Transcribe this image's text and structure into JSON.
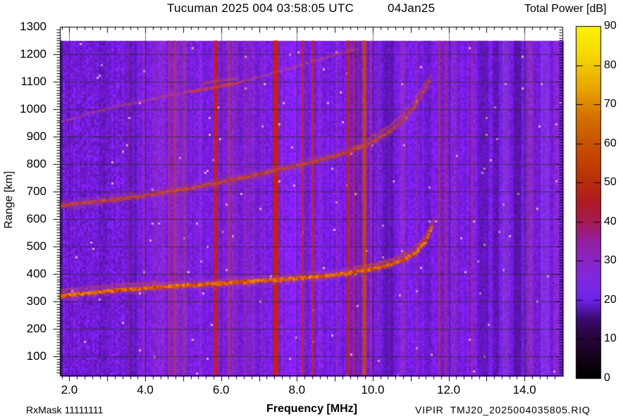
{
  "header": {
    "title": "Tucuman 2025 004 03:58:05 UTC",
    "date": "04Jan25"
  },
  "colorbar": {
    "title": "Total Power [dB]",
    "min": 0,
    "max": 90,
    "tick_step": 10,
    "tick_values": [
      0,
      10,
      20,
      30,
      40,
      50,
      60,
      70,
      80,
      90
    ]
  },
  "axes": {
    "x": {
      "label": "Frequency [MHz]",
      "min": 1.75,
      "max": 15.0,
      "tick_values": [
        2,
        4,
        6,
        8,
        10,
        12,
        14
      ],
      "tick_labels": [
        "2.0",
        "4.0",
        "6.0",
        "8.0",
        "10.0",
        "12.0",
        "14.0"
      ],
      "minor_step": 0.2,
      "mid_step": 1.0
    },
    "y": {
      "label": "Range [km]",
      "min": 30,
      "max": 1300,
      "tick_values": [
        100,
        200,
        300,
        400,
        500,
        600,
        700,
        800,
        900,
        1000,
        1100,
        1200,
        1300
      ],
      "minor_step": 10
    }
  },
  "footer": {
    "rx_mask": "RxMask 11111111",
    "filename": "VIPIR  TMJ20_2025004035805.RIQ"
  },
  "chart_data": {
    "type": "heatmap",
    "title": "Tucuman 2025 004 03:58:05 UTC 04Jan25",
    "xlabel": "Frequency [MHz]",
    "ylabel": "Range [km]",
    "zlabel": "Total Power [dB]",
    "xlim": [
      1.75,
      15.0
    ],
    "ylim": [
      30,
      1300
    ],
    "zlim": [
      0,
      90
    ],
    "grid": true,
    "background_power_dB": 23,
    "background_color": "#7a1ce4",
    "gridline_color": "rgba(25,45,0,0.6)",
    "echo_data_top_km": 1250,
    "foF2_MHz": 11.6,
    "colormap_stops": [
      [
        0.0,
        "#000000"
      ],
      [
        0.07,
        "#17031f"
      ],
      [
        0.13,
        "#2b0747"
      ],
      [
        0.17,
        "#3c0b72"
      ],
      [
        0.22,
        "#6c23e6"
      ],
      [
        0.27,
        "#7d29e2"
      ],
      [
        0.33,
        "#8a26c8"
      ],
      [
        0.39,
        "#951fa0"
      ],
      [
        0.44,
        "#a21c58"
      ],
      [
        0.5,
        "#ae1b22"
      ],
      [
        0.57,
        "#b93208"
      ],
      [
        0.65,
        "#c64d00"
      ],
      [
        0.74,
        "#d57000"
      ],
      [
        0.83,
        "#e9a800"
      ],
      [
        0.92,
        "#f6d800"
      ],
      [
        1.0,
        "#fcf403"
      ]
    ],
    "traces": [
      {
        "name": "F2-first-hop-O-mode",
        "power_dB": 58,
        "alpha": 1.0,
        "passes": 2,
        "glow": "#c05878",
        "palette": [
          "#b83000",
          "#d24a00",
          "#e26200",
          "#ee7e00",
          "#f09200"
        ],
        "points": [
          [
            1.75,
            318
          ],
          [
            2.2,
            326
          ],
          [
            3.0,
            337
          ],
          [
            4.0,
            348
          ],
          [
            5.0,
            357
          ],
          [
            6.0,
            365
          ],
          [
            7.0,
            374
          ],
          [
            8.0,
            384
          ],
          [
            8.8,
            393
          ],
          [
            9.4,
            404
          ],
          [
            10.0,
            418
          ],
          [
            10.5,
            435
          ],
          [
            10.9,
            457
          ],
          [
            11.15,
            480
          ],
          [
            11.35,
            512
          ],
          [
            11.48,
            545
          ],
          [
            11.57,
            577
          ]
        ]
      },
      {
        "name": "F2-first-hop-X-mode",
        "power_dB": 46,
        "alpha": 0.5,
        "passes": 1,
        "palette": [
          "#c04030",
          "#cc5520",
          "#c54a40"
        ],
        "points": [
          [
            9.5,
            420
          ],
          [
            10.0,
            434
          ],
          [
            10.5,
            452
          ],
          [
            10.9,
            476
          ],
          [
            11.2,
            510
          ],
          [
            11.4,
            548
          ],
          [
            11.55,
            585
          ],
          [
            11.63,
            608
          ]
        ]
      },
      {
        "name": "F2-first-hop-X-mode-lowfreq",
        "power_dB": 36,
        "alpha": 0.28,
        "passes": 1,
        "palette": [
          "#bb4466",
          "#c05050"
        ],
        "points": [
          [
            1.75,
            341
          ],
          [
            2.6,
            353
          ],
          [
            3.5,
            364
          ],
          [
            4.3,
            372
          ]
        ]
      },
      {
        "name": "F2-second-hop",
        "power_dB": 46,
        "alpha": 0.8,
        "passes": 1,
        "glow": "#a8487f",
        "palette": [
          "#b03048",
          "#c33d22",
          "#cc4e10",
          "#d25a18"
        ],
        "points": [
          [
            1.75,
            648
          ],
          [
            2.5,
            660
          ],
          [
            3.5,
            676
          ],
          [
            4.5,
            696
          ],
          [
            5.5,
            720
          ],
          [
            6.5,
            748
          ],
          [
            7.5,
            778
          ],
          [
            8.2,
            800
          ],
          [
            8.8,
            822
          ],
          [
            9.4,
            848
          ],
          [
            10.0,
            882
          ],
          [
            10.5,
            925
          ],
          [
            10.9,
            975
          ],
          [
            11.15,
            1022
          ],
          [
            11.3,
            1055
          ],
          [
            11.42,
            1085
          ],
          [
            11.5,
            1100
          ]
        ]
      },
      {
        "name": "F2-second-hop-X-mode",
        "power_dB": 38,
        "alpha": 0.38,
        "passes": 1,
        "palette": [
          "#bb4455",
          "#c25030"
        ],
        "points": [
          [
            9.9,
            895
          ],
          [
            10.4,
            935
          ],
          [
            10.8,
            985
          ],
          [
            11.1,
            1035
          ],
          [
            11.3,
            1080
          ],
          [
            11.45,
            1112
          ],
          [
            11.55,
            1130
          ]
        ]
      },
      {
        "name": "F2-third-hop",
        "power_dB": 33,
        "alpha": 0.28,
        "passes": 1,
        "palette": [
          "#c04f82",
          "#c25560",
          "#bd4a70"
        ],
        "points": [
          [
            1.75,
            952
          ],
          [
            2.5,
            984
          ],
          [
            3.5,
            1018
          ],
          [
            4.5,
            1046
          ],
          [
            5.5,
            1072
          ],
          [
            6.5,
            1098
          ],
          [
            7.5,
            1136
          ],
          [
            8.3,
            1170
          ],
          [
            9.0,
            1198
          ],
          [
            9.6,
            1220
          ]
        ]
      },
      {
        "name": "F2-third-hop-bright-segment",
        "power_dB": 40,
        "alpha": 0.55,
        "passes": 1,
        "palette": [
          "#cc3a30",
          "#c74545"
        ],
        "points": [
          [
            5.15,
            1064
          ],
          [
            5.7,
            1076
          ],
          [
            6.2,
            1088
          ],
          [
            6.5,
            1096
          ]
        ]
      },
      {
        "name": "F2-third-hop-upper-segment",
        "power_dB": 36,
        "alpha": 0.35,
        "passes": 1,
        "palette": [
          "#c54a55",
          "#c05065"
        ],
        "points": [
          [
            5.5,
            1094
          ],
          [
            6.0,
            1104
          ],
          [
            6.45,
            1112
          ]
        ]
      }
    ],
    "rfi_lines": [
      {
        "f": 2.9,
        "w": 0.2,
        "c": "#14003c",
        "a": 0.16
      },
      {
        "f": 3.55,
        "w": 0.05,
        "c": "#c24a78",
        "a": 0.2
      },
      {
        "f": 3.96,
        "w": 0.06,
        "c": "#c24a78",
        "a": 0.3
      },
      {
        "f": 4.35,
        "w": 0.35,
        "c": "#b84a8a",
        "a": 0.18
      },
      {
        "f": 4.63,
        "w": 0.08,
        "c": "#c23a50",
        "a": 0.5
      },
      {
        "f": 4.77,
        "w": 0.09,
        "c": "#c83a30",
        "a": 0.55
      },
      {
        "f": 4.95,
        "w": 0.35,
        "c": "#b84a8a",
        "a": 0.2
      },
      {
        "f": 5.03,
        "w": 0.05,
        "c": "#c23a50",
        "a": 0.45
      },
      {
        "f": 5.28,
        "w": 0.05,
        "c": "#b84a8a",
        "a": 0.2
      },
      {
        "f": 5.46,
        "w": 0.05,
        "c": "#b84a8a",
        "a": 0.25
      },
      {
        "f": 5.86,
        "w": 0.1,
        "c": "#cc2200",
        "a": 0.85
      },
      {
        "f": 6.02,
        "w": 0.05,
        "c": "#c23a50",
        "a": 0.3
      },
      {
        "f": 6.21,
        "w": 0.07,
        "c": "#c83a30",
        "a": 0.45
      },
      {
        "f": 6.3,
        "w": 0.3,
        "c": "#b84a8a",
        "a": 0.2
      },
      {
        "f": 6.63,
        "w": 0.06,
        "c": "#c23a50",
        "a": 0.35
      },
      {
        "f": 6.8,
        "w": 0.2,
        "c": "#b84a8a",
        "a": 0.18
      },
      {
        "f": 7.08,
        "w": 0.05,
        "c": "#b84a8a",
        "a": 0.3
      },
      {
        "f": 7.44,
        "w": 0.14,
        "c": "#cc2200",
        "a": 0.92
      },
      {
        "f": 7.62,
        "w": 0.05,
        "c": "#b84a8a",
        "a": 0.3
      },
      {
        "f": 8.15,
        "w": 0.07,
        "c": "#cc2a10",
        "a": 0.7
      },
      {
        "f": 8.42,
        "w": 0.07,
        "c": "#cc2a10",
        "a": 0.72
      },
      {
        "f": 8.6,
        "w": 0.05,
        "c": "#b84a8a",
        "a": 0.3
      },
      {
        "f": 9.05,
        "w": 0.05,
        "c": "#b84a8a",
        "a": 0.3
      },
      {
        "f": 9.35,
        "w": 0.08,
        "c": "#cc2200",
        "a": 0.8
      },
      {
        "f": 9.5,
        "w": 0.06,
        "c": "#cc2a10",
        "a": 0.6
      },
      {
        "f": 9.62,
        "w": 0.05,
        "c": "#b84a8a",
        "a": 0.35
      },
      {
        "f": 9.78,
        "w": 0.1,
        "c": "#d24400",
        "a": 0.88
      },
      {
        "f": 9.95,
        "w": 0.06,
        "c": "#c23a50",
        "a": 0.4
      },
      {
        "f": 10.15,
        "w": 0.05,
        "c": "#b84a8a",
        "a": 0.25
      },
      {
        "f": 10.4,
        "w": 0.3,
        "c": "#14003c",
        "a": 0.22
      },
      {
        "f": 10.8,
        "w": 0.15,
        "c": "#b84a8a",
        "a": 0.25
      },
      {
        "f": 11.15,
        "w": 0.05,
        "c": "#b84a8a",
        "a": 0.3
      },
      {
        "f": 11.45,
        "w": 0.2,
        "c": "#14003c",
        "a": 0.15
      },
      {
        "f": 11.75,
        "w": 0.07,
        "c": "#c23a50",
        "a": 0.55
      },
      {
        "f": 11.92,
        "w": 0.07,
        "c": "#c23a50",
        "a": 0.42
      },
      {
        "f": 12.15,
        "w": 0.2,
        "c": "#b84a8a",
        "a": 0.18
      },
      {
        "f": 12.62,
        "w": 0.07,
        "c": "#c23a50",
        "a": 0.4
      },
      {
        "f": 12.9,
        "w": 0.3,
        "c": "#14003c",
        "a": 0.2
      },
      {
        "f": 13.25,
        "w": 0.15,
        "c": "#14003c",
        "a": 0.26
      },
      {
        "f": 13.5,
        "w": 0.18,
        "c": "#9a5ad8",
        "a": 0.3
      },
      {
        "f": 13.82,
        "w": 0.2,
        "c": "#14003c",
        "a": 0.28
      },
      {
        "f": 14.15,
        "w": 0.18,
        "c": "#b84a8a",
        "a": 0.3
      },
      {
        "f": 14.55,
        "w": 0.25,
        "c": "#9a5ad8",
        "a": 0.25
      },
      {
        "f": 14.85,
        "w": 0.12,
        "c": "#b84a8a",
        "a": 0.25
      }
    ]
  }
}
